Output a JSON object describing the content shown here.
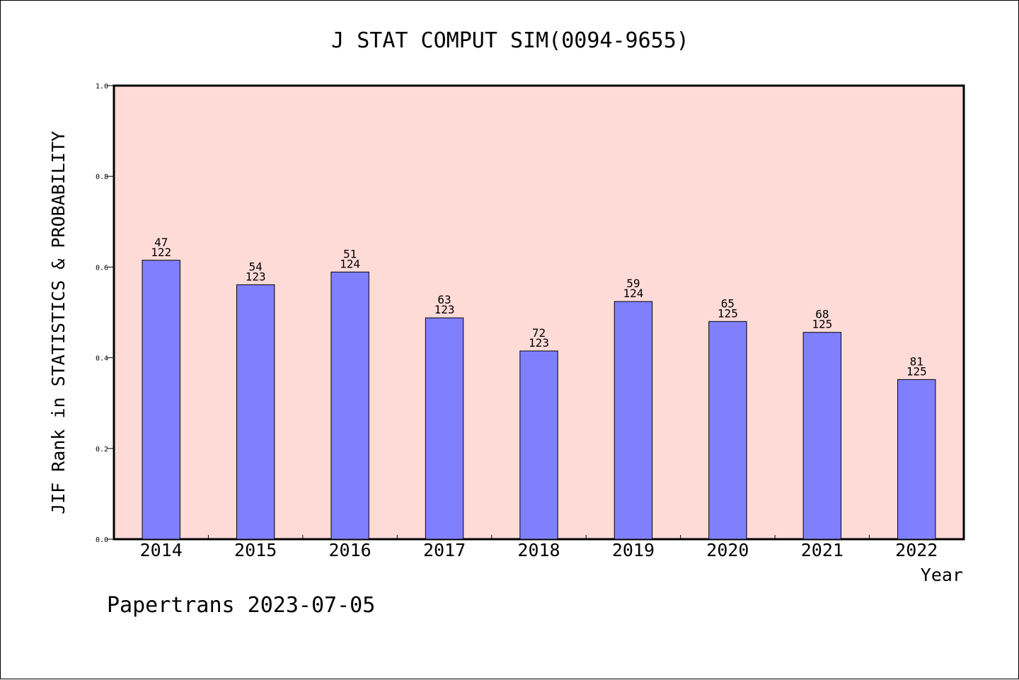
{
  "chart_data": {
    "type": "bar",
    "title": "J STAT COMPUT SIM(0094-9655)",
    "xlabel": "Year",
    "ylabel": "JIF Rank in STATISTICS & PROBABILITY",
    "ylim": [
      0,
      1.0
    ],
    "yticks": [
      "0.0",
      "0.2",
      "0.4",
      "0.6",
      "0.8",
      "1.0"
    ],
    "categories": [
      "2014",
      "2015",
      "2016",
      "2017",
      "2018",
      "2019",
      "2020",
      "2021",
      "2022"
    ],
    "values": [
      0.615,
      0.561,
      0.589,
      0.488,
      0.415,
      0.524,
      0.48,
      0.456,
      0.352
    ],
    "ranks": [
      "47",
      "54",
      "51",
      "63",
      "72",
      "59",
      "65",
      "68",
      "81"
    ],
    "totals": [
      "122",
      "123",
      "124",
      "123",
      "123",
      "124",
      "125",
      "125",
      "125"
    ],
    "grid": false,
    "colors": {
      "plot_background": "#ffdbd8",
      "bar_fill": "#8080ff",
      "bar_stroke": "#000000"
    }
  },
  "footer": {
    "credit": "Papertrans 2023-07-05"
  }
}
